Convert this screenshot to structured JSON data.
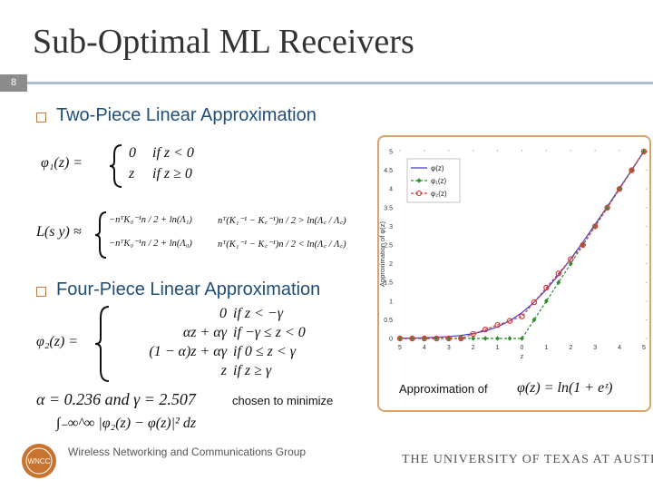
{
  "slide": {
    "title": "Sub-Optimal ML Receivers",
    "number": "8"
  },
  "bullets": [
    "Two-Piece Linear Approximation",
    "Four-Piece Linear Approximation"
  ],
  "equations": {
    "phi1": {
      "lhs": "φ₁(z) =",
      "cases": [
        [
          "0",
          "if z < 0"
        ],
        [
          "z",
          "if z ≥ 0"
        ]
      ]
    },
    "likelihood": {
      "lhs": "L(s y) ≈",
      "cases": [
        [
          "−nᵀK₀⁻¹n / 2 + ln(Λ₁)",
          "nᵀ(K₁⁻¹ − K꜀⁻¹)n / 2 > ln(Λ꜀ / Λ꜀)"
        ],
        [
          "−nᵀK₀⁻¹n / 2 + ln(Λ₀)",
          "nᵀ(K₁⁻¹ − K꜀⁻¹)n / 2 < ln(Λ꜀ / Λ꜀)"
        ]
      ]
    },
    "phi2": {
      "lhs": "φ₂(z) =",
      "cases": [
        [
          "0",
          "if z < −γ"
        ],
        [
          "αz + αγ",
          "if −γ ≤ z < 0"
        ],
        [
          "(1 − α)z + αγ",
          "if 0 ≤ z < γ"
        ],
        [
          "z",
          "if z ≥ γ"
        ]
      ]
    },
    "params": "α = 0.236 and γ = 2.507",
    "criterion_text": "chosen to minimize",
    "criterion": "∫₋∞^∞ |φ₂(z) − φ(z)|² dz"
  },
  "chart_data": {
    "type": "line",
    "xlabel": "z",
    "ylabel": "Approximation of φ(z)",
    "x": [
      -5,
      -4.5,
      -4,
      -3.5,
      -3,
      -2.5,
      -2,
      -1.5,
      -1,
      -0.5,
      0,
      0.5,
      1,
      1.5,
      2,
      2.5,
      3,
      3.5,
      4,
      4.5,
      5
    ],
    "series": [
      {
        "name": "φ(z)",
        "color": "#3b3bc8",
        "dashed": false,
        "marker": "none",
        "values": [
          0.01,
          0.01,
          0.02,
          0.03,
          0.05,
          0.08,
          0.13,
          0.2,
          0.31,
          0.47,
          0.69,
          0.97,
          1.31,
          1.7,
          2.13,
          2.58,
          3.05,
          3.53,
          4.02,
          4.51,
          5.01
        ]
      },
      {
        "name": "φ₁(z)",
        "color": "#2e8b2e",
        "dashed": true,
        "marker": "diamond",
        "values": [
          0,
          0,
          0,
          0,
          0,
          0,
          0,
          0,
          0,
          0,
          0,
          0.5,
          1,
          1.5,
          2,
          2.5,
          3,
          3.5,
          4,
          4.5,
          5
        ]
      },
      {
        "name": "φ₂(z)",
        "color": "#d63a3a",
        "dashed": true,
        "marker": "circle",
        "values": [
          0,
          0,
          0,
          0,
          0,
          0,
          0.12,
          0.24,
          0.36,
          0.47,
          0.59,
          0.97,
          1.36,
          1.74,
          2.12,
          2.5,
          3,
          3.5,
          4,
          4.5,
          5
        ]
      }
    ],
    "xlim": [
      -5,
      5
    ],
    "xticks": [
      {
        "value": -5,
        "label": "5"
      },
      {
        "value": -4,
        "label": "4"
      },
      {
        "value": -3,
        "label": "3"
      },
      {
        "value": -2,
        "label": "2"
      },
      {
        "value": -1,
        "label": "1"
      },
      0,
      1,
      2,
      3,
      4,
      5
    ],
    "ylim": [
      0,
      5
    ],
    "yticks": [
      0,
      0.5,
      1,
      1.5,
      2,
      2.5,
      3,
      3.5,
      4,
      4.5,
      5
    ],
    "legend": "upper left"
  },
  "caption": {
    "text": "Approximation of",
    "formula": "φ(z) = ln(1 + eᶻ)"
  },
  "footer": {
    "logo": "WNCC",
    "group": "Wireless Networking and Communications Group",
    "university": "THE UNIVERSITY OF TEXAS AT AUSTIN"
  }
}
